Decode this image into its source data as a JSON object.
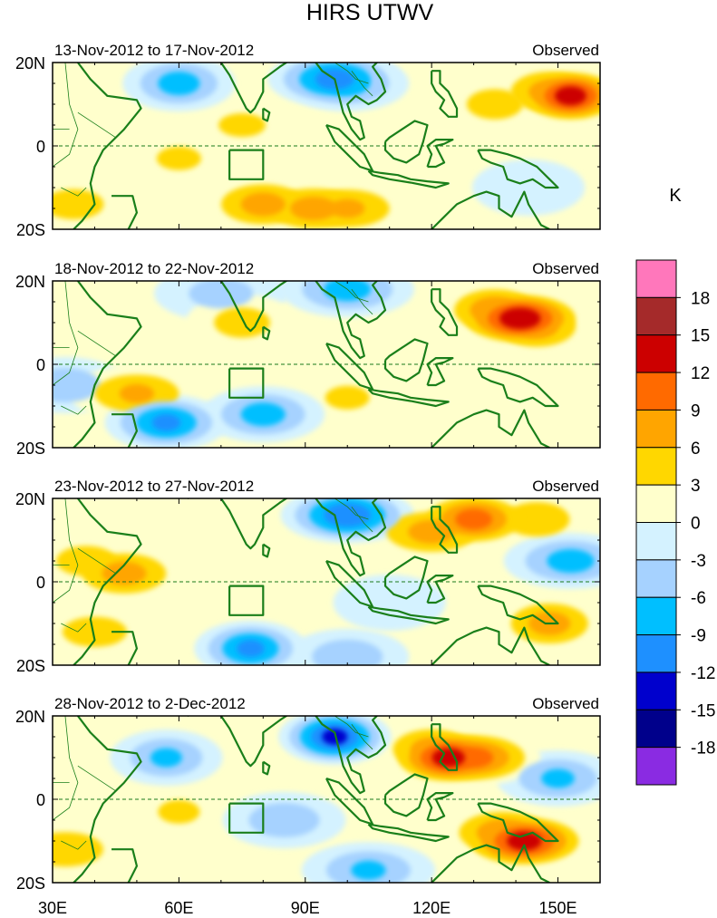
{
  "chart_data": {
    "type": "heatmap",
    "title": "HIRS UTWV",
    "colorbar": {
      "unit_label": "K",
      "tick_labels": [
        "18",
        "15",
        "12",
        "9",
        "6",
        "3",
        "0",
        "-3",
        "-6",
        "-9",
        "-12",
        "-15",
        "-18"
      ],
      "colors_top_to_bottom": [
        "#ff77bb",
        "#a52a2a",
        "#cc0000",
        "#ff6a00",
        "#ffa500",
        "#ffd700",
        "#ffffcc",
        "#d4f2ff",
        "#a6d2ff",
        "#00bfff",
        "#1e90ff",
        "#0000cd",
        "#00008b",
        "#8a2be2"
      ]
    },
    "x_ticks": [
      "30E",
      "60E",
      "90E",
      "120E",
      "150E"
    ],
    "y_ticks": [
      "20N",
      "0",
      "20S"
    ],
    "xlim_deg_east": [
      30,
      160
    ],
    "ylim_deg_north": [
      -20,
      20
    ],
    "panels": [
      {
        "date_range": "13-Nov-2012 to 17-Nov-2012",
        "status": "Observed",
        "blobs": [
          {
            "lon": 153,
            "lat": 12,
            "value": 14
          },
          {
            "lon": 148,
            "lat": 13,
            "value": 8
          },
          {
            "lon": 135,
            "lat": 10,
            "value": 5
          },
          {
            "lon": 80,
            "lat": -14,
            "value": 8
          },
          {
            "lon": 92,
            "lat": -15,
            "value": 8
          },
          {
            "lon": 100,
            "lat": -15,
            "value": 7
          },
          {
            "lon": 97,
            "lat": 16,
            "value": -11
          },
          {
            "lon": 60,
            "lat": 15,
            "value": -8
          },
          {
            "lon": 100,
            "lat": 15,
            "value": -8
          },
          {
            "lon": 60,
            "lat": -3,
            "value": 4
          },
          {
            "lon": 75,
            "lat": 5,
            "value": 4
          },
          {
            "lon": 35,
            "lat": -14,
            "value": 5
          },
          {
            "lon": 143,
            "lat": -10,
            "value": -2
          }
        ]
      },
      {
        "date_range": "18-Nov-2012 to 22-Nov-2012",
        "status": "Observed",
        "blobs": [
          {
            "lon": 141,
            "lat": 11,
            "value": 15
          },
          {
            "lon": 135,
            "lat": 13,
            "value": 9
          },
          {
            "lon": 145,
            "lat": 9,
            "value": 8
          },
          {
            "lon": 57,
            "lat": -14,
            "value": -10
          },
          {
            "lon": 80,
            "lat": -12,
            "value": -8
          },
          {
            "lon": 100,
            "lat": 18,
            "value": -8
          },
          {
            "lon": 70,
            "lat": 17,
            "value": -5
          },
          {
            "lon": 50,
            "lat": -7,
            "value": 7
          },
          {
            "lon": 75,
            "lat": 10,
            "value": 5
          },
          {
            "lon": 100,
            "lat": -8,
            "value": 4
          },
          {
            "lon": 125,
            "lat": -10,
            "value": 3
          },
          {
            "lon": 33,
            "lat": -5,
            "value": -6
          }
        ]
      },
      {
        "date_range": "23-Nov-2012 to 27-Nov-2012",
        "status": "Observed",
        "blobs": [
          {
            "lon": 130,
            "lat": 15,
            "value": 11
          },
          {
            "lon": 120,
            "lat": 12,
            "value": 8
          },
          {
            "lon": 145,
            "lat": 15,
            "value": 6
          },
          {
            "lon": 148,
            "lat": -10,
            "value": 8
          },
          {
            "lon": 47,
            "lat": 2,
            "value": 8
          },
          {
            "lon": 38,
            "lat": 5,
            "value": 5
          },
          {
            "lon": 100,
            "lat": 16,
            "value": -12
          },
          {
            "lon": 77,
            "lat": -16,
            "value": -10
          },
          {
            "lon": 153,
            "lat": 5,
            "value": -8
          },
          {
            "lon": 100,
            "lat": -18,
            "value": -6
          },
          {
            "lon": 40,
            "lat": -12,
            "value": 5
          },
          {
            "lon": 110,
            "lat": -5,
            "value": -3
          }
        ]
      },
      {
        "date_range": "28-Nov-2012 to 2-Dec-2012",
        "status": "Observed",
        "blobs": [
          {
            "lon": 124,
            "lat": 10,
            "value": 14
          },
          {
            "lon": 130,
            "lat": 10,
            "value": 11
          },
          {
            "lon": 120,
            "lat": 12,
            "value": 8
          },
          {
            "lon": 142,
            "lat": -10,
            "value": 14
          },
          {
            "lon": 137,
            "lat": -8,
            "value": 9
          },
          {
            "lon": 97,
            "lat": 15,
            "value": -13
          },
          {
            "lon": 57,
            "lat": 10,
            "value": -7
          },
          {
            "lon": 150,
            "lat": 5,
            "value": -7
          },
          {
            "lon": 85,
            "lat": -5,
            "value": -6
          },
          {
            "lon": 33,
            "lat": -12,
            "value": 6
          },
          {
            "lon": 60,
            "lat": -3,
            "value": 4
          },
          {
            "lon": 105,
            "lat": -17,
            "value": -7
          }
        ]
      }
    ]
  }
}
